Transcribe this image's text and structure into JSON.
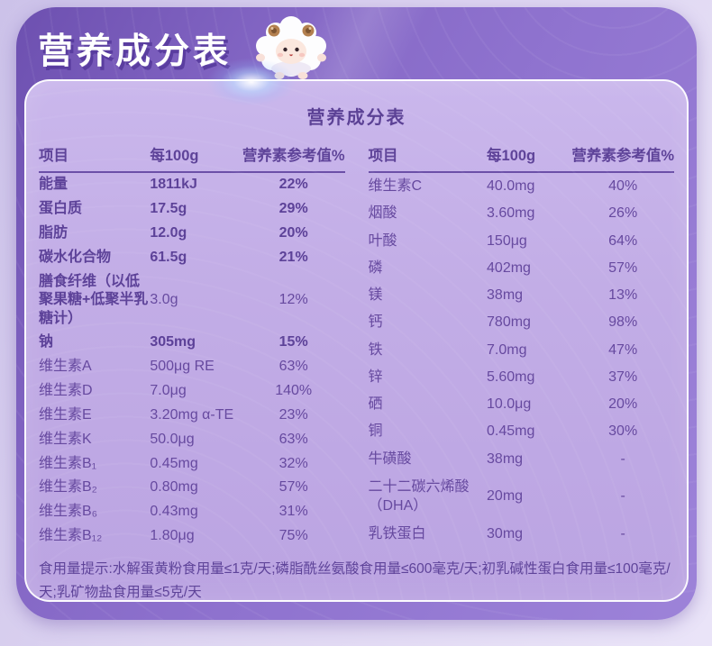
{
  "colors": {
    "panel_purple": "#8a6dca",
    "panel_dark": "#6d50b0",
    "card_fill": "#c2ade6",
    "text_purple": "#66499f",
    "header_text": "#ffffff",
    "title_shadow": "#563a9c"
  },
  "header": {
    "title": "营养成分表",
    "mascot": "sheep-mascot"
  },
  "card": {
    "title": "营养成分表",
    "columns": [
      "项目",
      "每100g",
      "营养素参考值%"
    ],
    "tables": [
      {
        "rows": [
          {
            "name": "能量",
            "value": "1811kJ",
            "nrv": "22%",
            "bold": true
          },
          {
            "name": "蛋白质",
            "value": "17.5g",
            "nrv": "29%",
            "bold": true
          },
          {
            "name": "脂肪",
            "value": "12.0g",
            "nrv": "20%",
            "bold": true
          },
          {
            "name": "碳水化合物",
            "value": "61.5g",
            "nrv": "21%",
            "bold": true
          },
          {
            "name": "膳食纤维（以低聚果糖+低聚半乳糖计）",
            "value": "3.0g",
            "nrv": "12%",
            "bold_name": true
          },
          {
            "name": "钠",
            "value": "305mg",
            "nrv": "15%",
            "bold": true
          },
          {
            "name": "维生素A",
            "value": "500μg RE",
            "nrv": "63%"
          },
          {
            "name": "维生素D",
            "value": "7.0μg",
            "nrv": "140%"
          },
          {
            "name": "维生素E",
            "value": "3.20mg α-TE",
            "nrv": "23%"
          },
          {
            "name": "维生素K",
            "value": "50.0μg",
            "nrv": "63%"
          },
          {
            "name": "维生素B₁",
            "value": "0.45mg",
            "nrv": "32%"
          },
          {
            "name": "维生素B₂",
            "value": "0.80mg",
            "nrv": "57%"
          },
          {
            "name": "维生素B₆",
            "value": "0.43mg",
            "nrv": "31%"
          },
          {
            "name": "维生素B₁₂",
            "value": "1.80μg",
            "nrv": "75%"
          }
        ]
      },
      {
        "rows": [
          {
            "name": "维生素C",
            "value": "40.0mg",
            "nrv": "40%"
          },
          {
            "name": "烟酸",
            "value": "3.60mg",
            "nrv": "26%"
          },
          {
            "name": "叶酸",
            "value": "150μg",
            "nrv": "64%"
          },
          {
            "name": "磷",
            "value": "402mg",
            "nrv": "57%"
          },
          {
            "name": "镁",
            "value": "38mg",
            "nrv": "13%"
          },
          {
            "name": "钙",
            "value": "780mg",
            "nrv": "98%"
          },
          {
            "name": "铁",
            "value": "7.0mg",
            "nrv": "47%"
          },
          {
            "name": "锌",
            "value": "5.60mg",
            "nrv": "37%"
          },
          {
            "name": "硒",
            "value": "10.0μg",
            "nrv": "20%"
          },
          {
            "name": "铜",
            "value": "0.45mg",
            "nrv": "30%"
          },
          {
            "name": "牛磺酸",
            "value": "38mg",
            "nrv": "-"
          },
          {
            "name": "二十二碳六烯酸（DHA）",
            "value": "20mg",
            "nrv": "-"
          },
          {
            "name": "乳铁蛋白",
            "value": "30mg",
            "nrv": "-"
          }
        ]
      }
    ],
    "note": "食用量提示:水解蛋黄粉食用量≤1克/天;磷脂酰丝氨酸食用量≤600毫克/天;初乳碱性蛋白食用量≤100毫克/天;乳矿物盐食用量≤5克/天"
  }
}
